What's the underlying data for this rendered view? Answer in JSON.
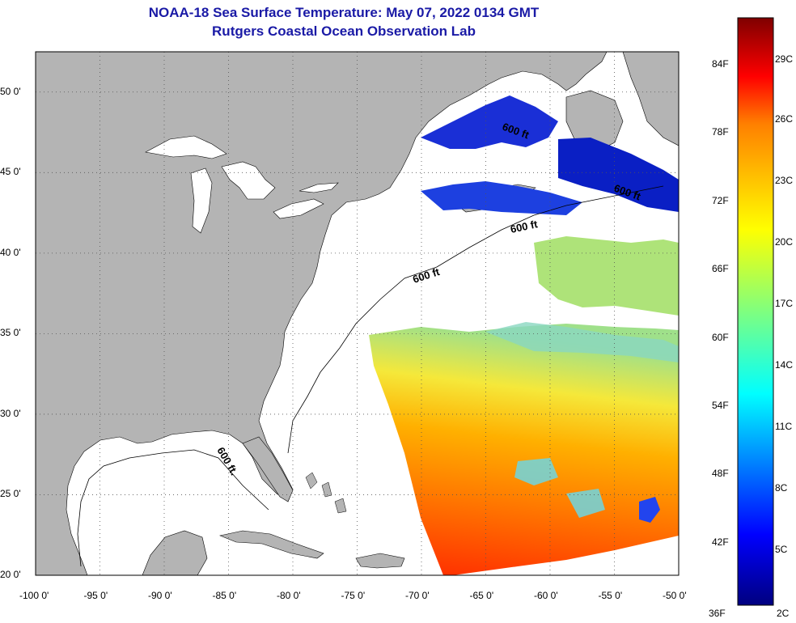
{
  "title_line1": "NOAA-18 Sea Surface Temperature:  May 07, 2022 0134 GMT",
  "title_line2": "Rutgers Coastal Ocean Observation Lab",
  "map": {
    "lon_range": [
      -100,
      -50
    ],
    "lat_range": [
      20,
      52.5
    ],
    "lat_ticks": [
      {
        "value": 50,
        "label": "50 0'"
      },
      {
        "value": 45,
        "label": "45 0'"
      },
      {
        "value": 40,
        "label": "40 0'"
      },
      {
        "value": 35,
        "label": "35 0'"
      },
      {
        "value": 30,
        "label": "30 0'"
      },
      {
        "value": 25,
        "label": "25 0'"
      },
      {
        "value": 20,
        "label": "20 0'"
      }
    ],
    "lon_ticks": [
      {
        "value": -100,
        "label": "-100 0'"
      },
      {
        "value": -95,
        "label": "-95 0'"
      },
      {
        "value": -90,
        "label": "-90 0'"
      },
      {
        "value": -85,
        "label": "-85 0'"
      },
      {
        "value": -80,
        "label": "-80 0'"
      },
      {
        "value": -75,
        "label": "-75 0'"
      },
      {
        "value": -70,
        "label": "-70 0'"
      },
      {
        "value": -65,
        "label": "-65 0'"
      },
      {
        "value": -60,
        "label": "-60 0'"
      },
      {
        "value": -55,
        "label": "-55 0'"
      },
      {
        "value": -50,
        "label": "-50 0'"
      }
    ],
    "contour_labels": [
      "600 ft",
      "600 ft",
      "600 ft",
      "600 ft",
      "600 ft."
    ],
    "grid": true,
    "colors": {
      "land": "#b4b4b4",
      "ocean_no_data": "#ffffff",
      "grid": "#555555"
    }
  },
  "colorbar": {
    "min_label_f": "36F",
    "min_label_c": "2C",
    "f_labels": [
      "84F",
      "78F",
      "72F",
      "66F",
      "60F",
      "54F",
      "48F",
      "42F"
    ],
    "c_labels": [
      "29C",
      "26C",
      "23C",
      "20C",
      "17C",
      "14C",
      "11C",
      "8C",
      "5C"
    ],
    "colors": [
      "#00007f",
      "#0000ff",
      "#007fff",
      "#00ffff",
      "#7fff7f",
      "#ffff00",
      "#ff7f00",
      "#ff0000",
      "#7f0000"
    ]
  }
}
